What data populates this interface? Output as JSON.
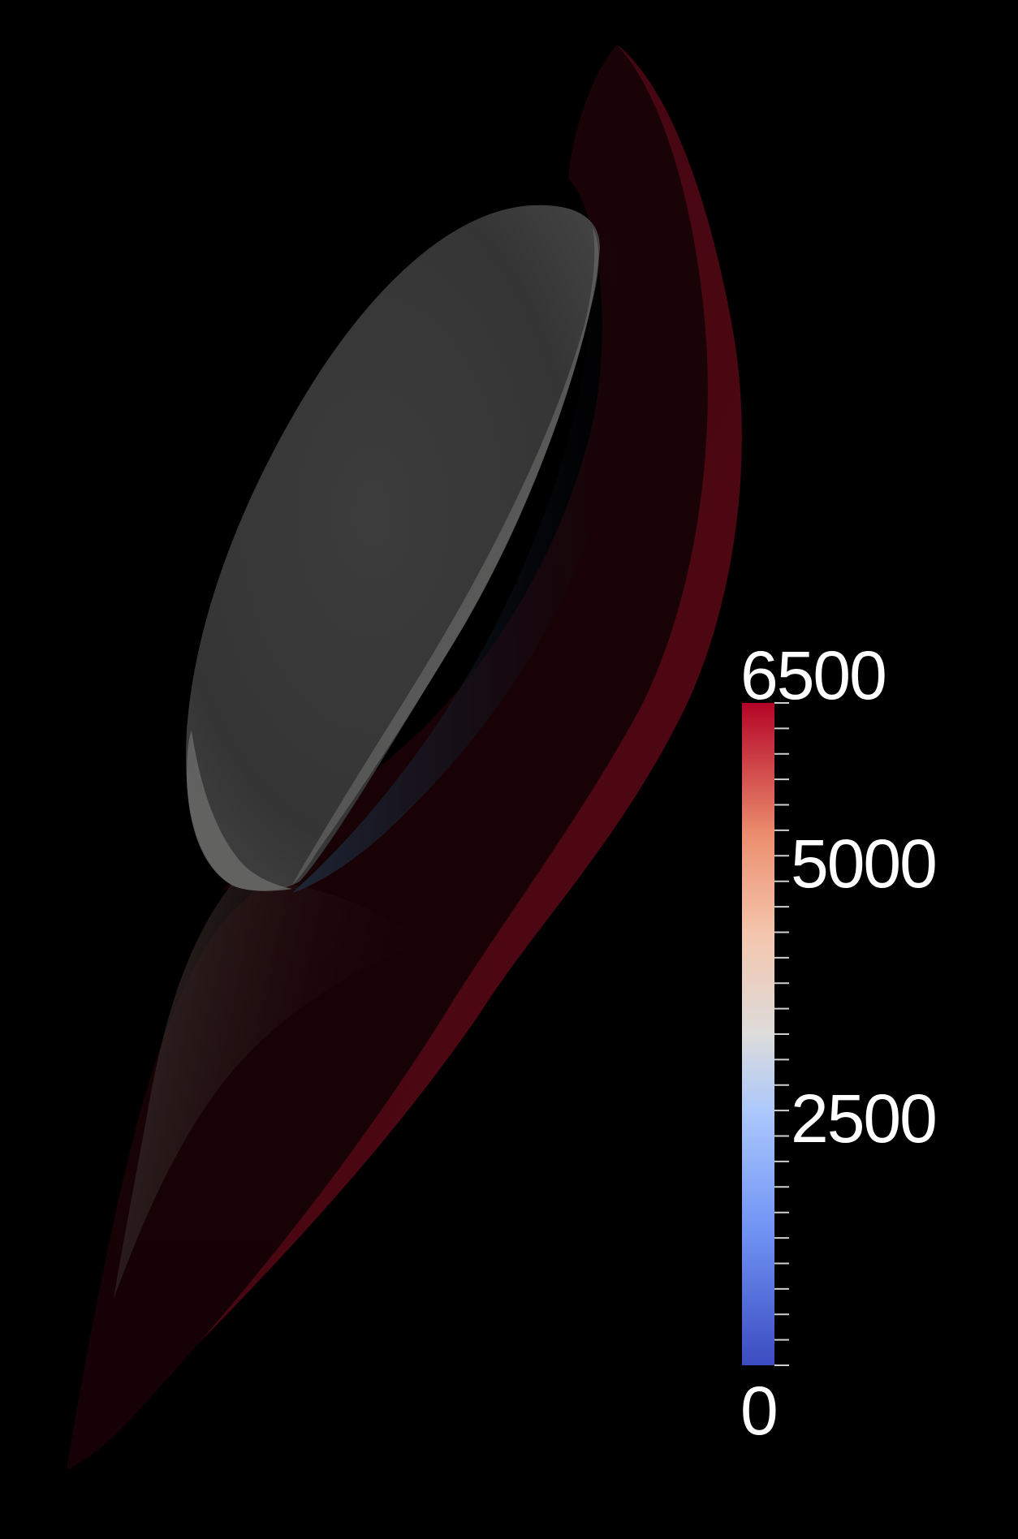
{
  "colorbar": {
    "tick_labels": [
      "6500",
      "5000",
      "2500",
      "0"
    ],
    "range": [
      0,
      6500
    ],
    "colormap": "cool-to-warm",
    "colors": {
      "low": "#3b4cc0",
      "mid": "#dddcdb",
      "high": "#b40426"
    }
  },
  "scene": {
    "background": "#000000",
    "body_color": "#3a3a3a",
    "shock_layer_color": "#5a0610"
  }
}
